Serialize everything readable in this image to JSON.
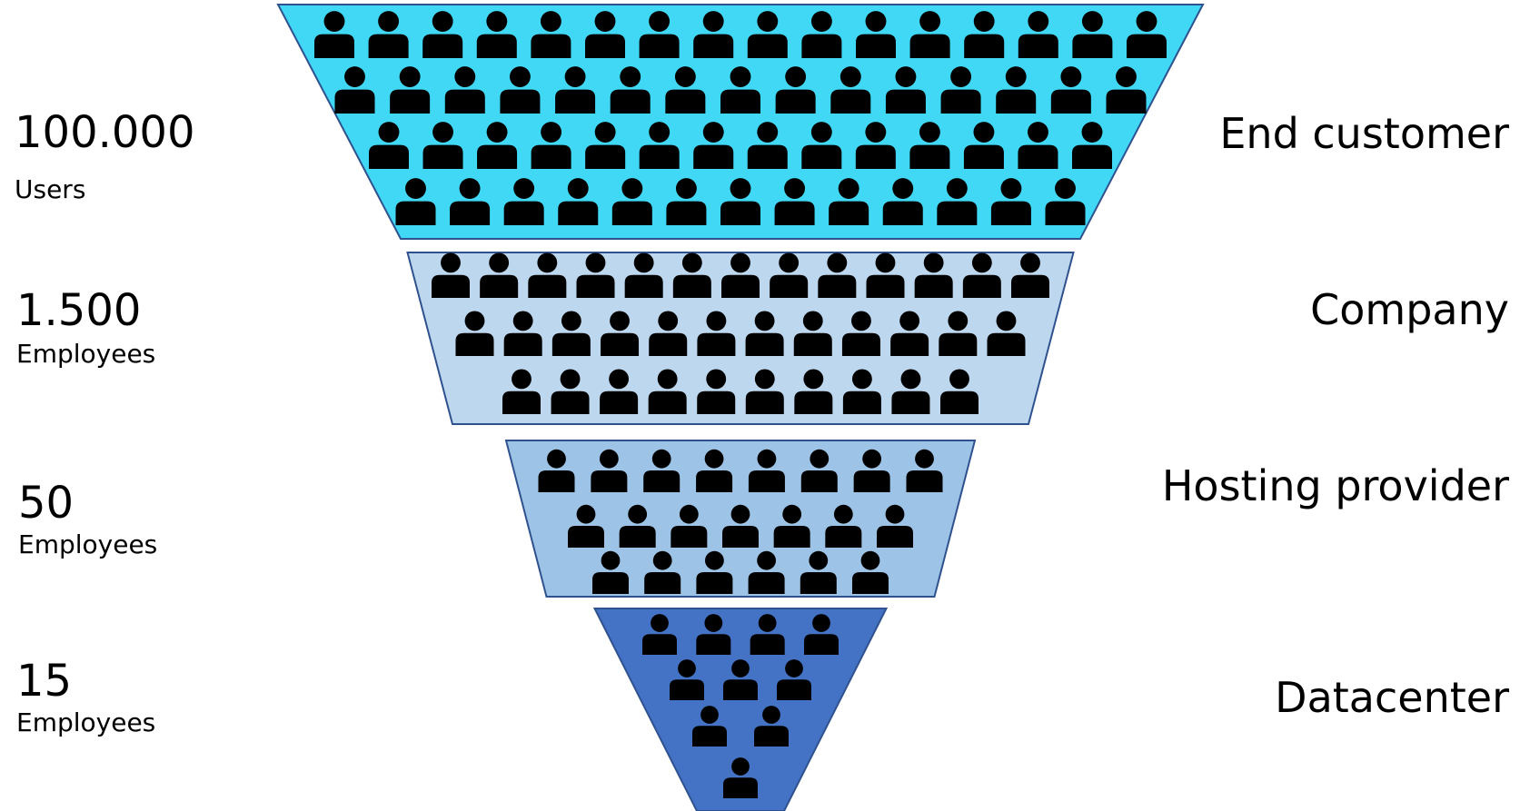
{
  "tiers": [
    {
      "name": "End customer",
      "count": "100.000",
      "unit": "Users",
      "color": "#40d8f5",
      "people_rows": [
        16,
        15,
        14,
        13
      ]
    },
    {
      "name": "Company",
      "count": "1.500",
      "unit": "Employees",
      "color": "#bdd7ee",
      "people_rows": [
        13,
        12,
        10
      ]
    },
    {
      "name": "Hosting provider",
      "count": "50",
      "unit": "Employees",
      "color": "#9dc3e6",
      "people_rows": [
        8,
        7,
        6
      ]
    },
    {
      "name": "Datacenter",
      "count": "15",
      "unit": "Employees",
      "color": "#4472c4",
      "people_rows": [
        4,
        3,
        2,
        1
      ]
    }
  ],
  "person_icon_color": "#000000",
  "outline_color": "#2f528f"
}
